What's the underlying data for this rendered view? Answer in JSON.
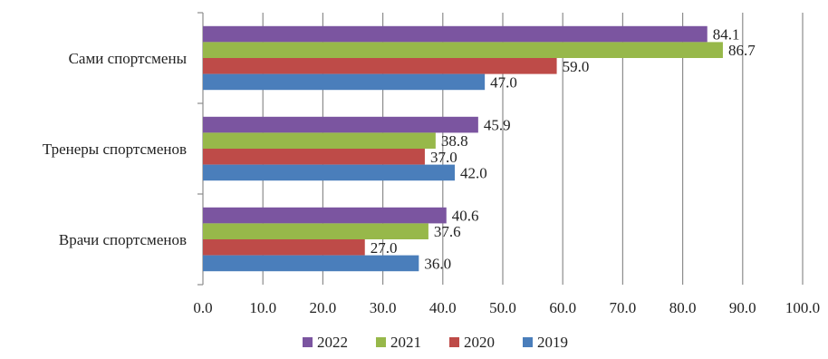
{
  "chart_data": {
    "type": "bar",
    "orientation": "horizontal",
    "title": "",
    "xlabel": "",
    "ylabel": "",
    "xlim": [
      0,
      100
    ],
    "x_ticks": [
      "0.0",
      "10.0",
      "20.0",
      "30.0",
      "40.0",
      "50.0",
      "60.0",
      "70.0",
      "80.0",
      "90.0",
      "100.0"
    ],
    "grid": true,
    "legend_position": "bottom",
    "categories": [
      "Сами спортсмены",
      "Тренеры спортсменов",
      "Врачи спортсменов"
    ],
    "series": [
      {
        "name": "2022",
        "color": "#7b55a0",
        "values": [
          84.1,
          45.9,
          40.6
        ],
        "labels": [
          "84.1",
          "45.9",
          "40.6"
        ]
      },
      {
        "name": "2021",
        "color": "#97b84a",
        "values": [
          86.7,
          38.8,
          37.6
        ],
        "labels": [
          "86.7",
          "38.8",
          "37.6"
        ]
      },
      {
        "name": "2020",
        "color": "#be4b48",
        "values": [
          59.0,
          37.0,
          27.0
        ],
        "labels": [
          "59.0",
          "37.0",
          "27.0"
        ]
      },
      {
        "name": "2019",
        "color": "#4a7ebb",
        "values": [
          47.0,
          42.0,
          36.0
        ],
        "labels": [
          "47.0",
          "42.0",
          "36.0"
        ]
      }
    ]
  }
}
